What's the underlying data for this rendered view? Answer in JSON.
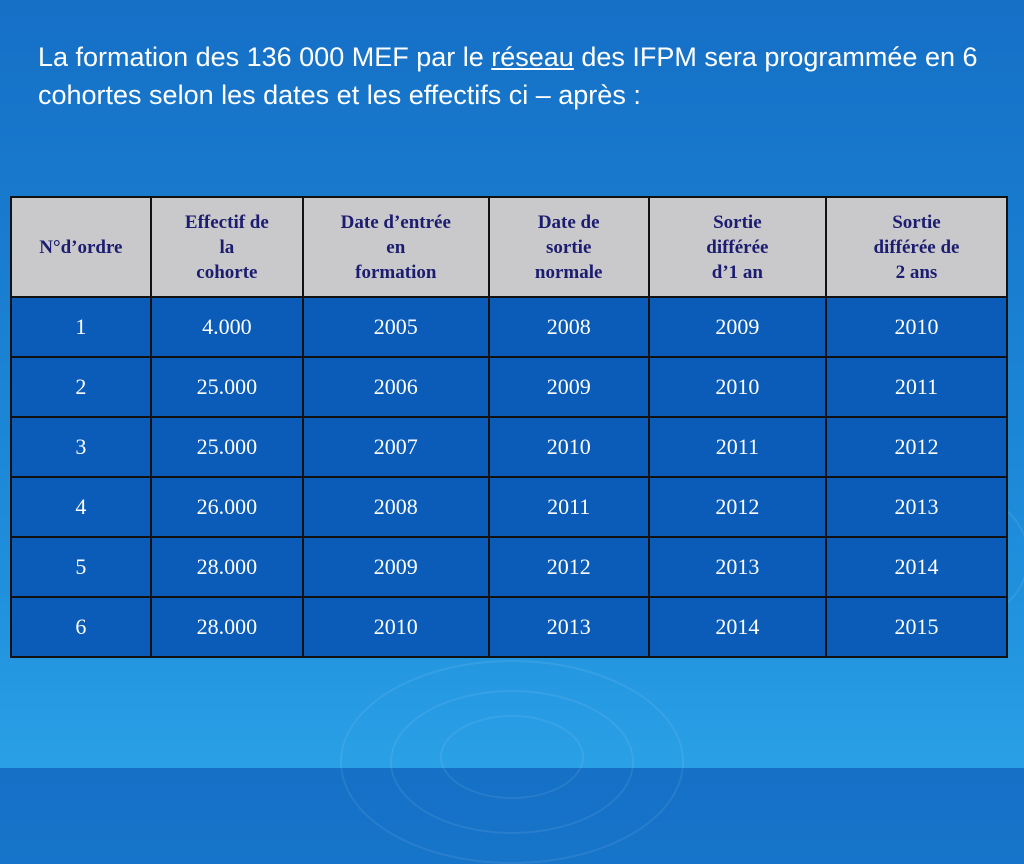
{
  "intro": {
    "part1": "La formation des 136 000 MEF par le ",
    "underlined": "réseau",
    "part2": " des IFPM sera programmée en 6 cohortes  selon les dates et les effectifs ci – après :"
  },
  "table": {
    "headers": [
      "N°d’ordre",
      "Effectif de\nla\ncohorte",
      "Date d’entrée\nen\nformation",
      "Date de\nsortie\nnormale",
      "Sortie\ndifférée\nd’1 an",
      "Sortie\ndifférée de\n2 ans"
    ],
    "rows": [
      [
        "1",
        "4.000",
        "2005",
        "2008",
        "2009",
        "2010"
      ],
      [
        "2",
        "25.000",
        "2006",
        "2009",
        "2010",
        "2011"
      ],
      [
        "3",
        "25.000",
        "2007",
        "2010",
        "2011",
        "2012"
      ],
      [
        "4",
        "26.000",
        "2008",
        "2011",
        "2012",
        "2013"
      ],
      [
        "5",
        "28.000",
        "2009",
        "2012",
        "2013",
        "2014"
      ],
      [
        "6",
        "28.000",
        "2010",
        "2013",
        "2014",
        "2015"
      ]
    ]
  }
}
